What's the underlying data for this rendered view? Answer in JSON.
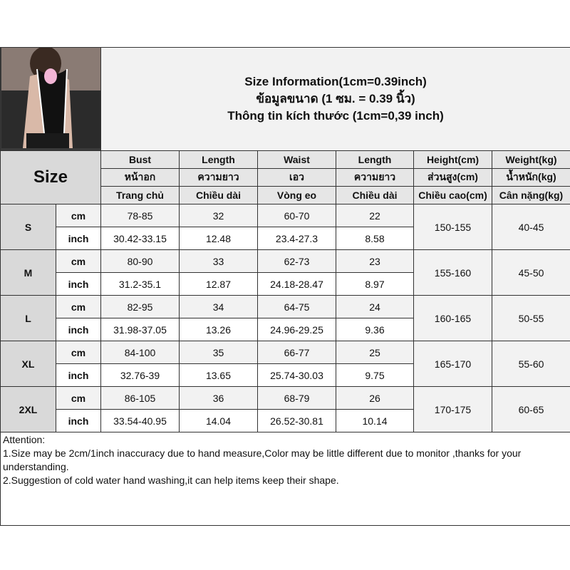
{
  "title_lines": [
    "Size Information(1cm=0.39inch)",
    "ข้อมูลขนาด (1 ซม. = 0.39 นิ้ว)",
    "Thông tin kích thước (1cm=0,39 inch)"
  ],
  "size_label": "Size",
  "columns": [
    {
      "en": "Bust",
      "th": "หน้าอก",
      "vi": "Trang chủ"
    },
    {
      "en": "Length",
      "th": "ความยาว",
      "vi": "Chiều dài"
    },
    {
      "en": "Waist",
      "th": "เอว",
      "vi": "Vòng eo"
    },
    {
      "en": "Length",
      "th": "ความยาว",
      "vi": "Chiều dài"
    },
    {
      "en": "Height(cm)",
      "th": "ส่วนสูง(cm)",
      "vi": "Chiều cao(cm)"
    },
    {
      "en": "Weight(kg)",
      "th": "น้ำหนัก(kg)",
      "vi": "Cân nặng(kg)"
    }
  ],
  "units": {
    "cm": "cm",
    "inch": "inch"
  },
  "sizes": [
    {
      "size": "S",
      "cm": [
        "78-85",
        "32",
        "60-70",
        "22"
      ],
      "inch": [
        "30.42-33.15",
        "12.48",
        "23.4-27.3",
        "8.58"
      ],
      "height": "150-155",
      "weight": "40-45"
    },
    {
      "size": "M",
      "cm": [
        "80-90",
        "33",
        "62-73",
        "23"
      ],
      "inch": [
        "31.2-35.1",
        "12.87",
        "24.18-28.47",
        "8.97"
      ],
      "height": "155-160",
      "weight": "45-50"
    },
    {
      "size": "L",
      "cm": [
        "82-95",
        "34",
        "64-75",
        "24"
      ],
      "inch": [
        "31.98-37.05",
        "13.26",
        "24.96-29.25",
        "9.36"
      ],
      "height": "160-165",
      "weight": "50-55"
    },
    {
      "size": "XL",
      "cm": [
        "84-100",
        "35",
        "66-77",
        "25"
      ],
      "inch": [
        "32.76-39",
        "13.65",
        "25.74-30.03",
        "9.75"
      ],
      "height": "165-170",
      "weight": "55-60"
    },
    {
      "size": "2XL",
      "cm": [
        "86-105",
        "36",
        "68-79",
        "26"
      ],
      "inch": [
        "33.54-40.95",
        "14.04",
        "26.52-30.81",
        "10.14"
      ],
      "height": "170-175",
      "weight": "60-65"
    }
  ],
  "attention": {
    "heading": "Attention:",
    "lines": [
      "1.Size may be 2cm/1inch inaccuracy due to hand measure,Color may be little different due to monitor ,thanks for your understanding.",
      "2.Suggestion of cold water hand washing,it can help items keep their shape."
    ]
  },
  "colors": {
    "header_bg": "#e6e6e6",
    "size_bg": "#d9d9d9",
    "cm_row_bg": "#f2f2f2",
    "inch_row_bg": "#ffffff",
    "border": "#333333"
  }
}
